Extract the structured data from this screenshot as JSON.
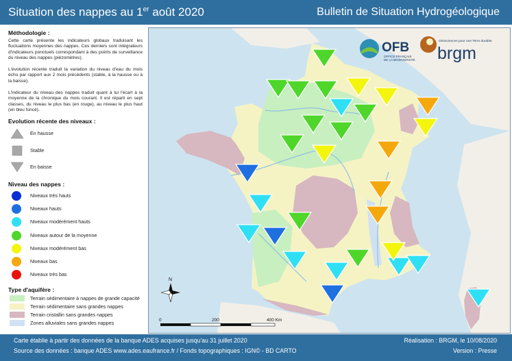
{
  "header": {
    "title_main": "Situation des nappes au 1",
    "title_sup": "er",
    "title_end": " août 2020",
    "right_title": "Bulletin de Situation Hydrogéologique"
  },
  "methodology": {
    "title": "Méthodologie :",
    "paragraphs": [
      "Cette carte présente les indicateurs globaux traduisant les fluctuations moyennes des nappes. Ces derniers sont intégrateurs d'indicateurs ponctuels correspondant à des points de surveillance du niveau des nappes (piézomètres).",
      "L'évolution récente traduit la variation du niveau d'eau du mois échu par rapport aux 2 mois précédents (stable, à la hausse ou à la baisse).",
      "L'indicateur du niveau des nappes traduit quant à lui l'écart à la moyenne de la chronique du mois courant. Il est réparti en sept classes, du niveau le plus bas (en rouge), au niveau le plus haut (en bleu foncé)."
    ]
  },
  "evolution": {
    "title": "Evolution récente des niveaux :",
    "items": [
      {
        "shape": "up",
        "label": "En hausse"
      },
      {
        "shape": "square",
        "label": "Stable"
      },
      {
        "shape": "down",
        "label": "En baisse"
      }
    ]
  },
  "levels": {
    "title": "Niveau des nappes :",
    "items": [
      {
        "color": "#0a2fd6",
        "label": "Niveaux très hauts"
      },
      {
        "color": "#1e6fe0",
        "label": "Niveaux hauts"
      },
      {
        "color": "#2fe0f5",
        "label": "Niveaux modérément hauts"
      },
      {
        "color": "#4fd62a",
        "label": "Niveaux autour de la moyenne"
      },
      {
        "color": "#f3f50c",
        "label": "Niveaux modérément bas"
      },
      {
        "color": "#f5a80c",
        "label": "Niveaux bas"
      },
      {
        "color": "#e8140c",
        "label": "Niveaux très bas"
      }
    ]
  },
  "aquifer": {
    "title": "Type d'aquifère :",
    "items": [
      {
        "color": "#c8efc0",
        "label": "Terrain sédimentaire à nappes de grande capacité"
      },
      {
        "color": "#f5f3c4",
        "label": "Terrain sédimentaire sans grandes nappes"
      },
      {
        "color": "#d7b7c0",
        "label": "Terrain cristallin sans grandes nappes"
      },
      {
        "color": "#cfe1f3",
        "label": "Zones alluviales sans grandes nappes"
      }
    ]
  },
  "logos": {
    "ofb": "OFB",
    "ofb_sub1": "OFFICE FRANÇAIS",
    "ofb_sub2": "DE LA BIODIVERSITÉ",
    "brgm": "brgm",
    "brgm_tagline": "Géosciences pour une Terre durable"
  },
  "map": {
    "scale_labels": [
      "0",
      "200",
      "400 Km"
    ],
    "north_label": "N",
    "colors": {
      "sea": "#cde3f0",
      "neighbors": "#f2efe9",
      "sedimentary_large": "#c8efc0",
      "sedimentary_small": "#f5f3c4",
      "crystalline": "#d7b7c0",
      "alluvial": "#cfe1f3",
      "rivers": "#8ec1e0"
    },
    "markers": [
      {
        "level": "moyenne",
        "color": "#4fd62a"
      },
      {
        "level": "moyenne",
        "color": "#4fd62a"
      },
      {
        "level": "moyenne",
        "color": "#4fd62a"
      },
      {
        "level": "moyenne",
        "color": "#4fd62a"
      },
      {
        "level": "modérément bas",
        "color": "#f3f50c"
      },
      {
        "level": "modérément bas",
        "color": "#f3f50c"
      },
      {
        "level": "bas",
        "color": "#f5a80c"
      },
      {
        "level": "modérément hauts",
        "color": "#2fe0f5"
      },
      {
        "level": "moyenne",
        "color": "#4fd62a"
      },
      {
        "level": "moyenne",
        "color": "#4fd62a"
      },
      {
        "level": "moyenne",
        "color": "#4fd62a"
      },
      {
        "level": "modérément bas",
        "color": "#f3f50c"
      },
      {
        "level": "moyenne",
        "color": "#4fd62a"
      },
      {
        "level": "modérément bas",
        "color": "#f3f50c"
      },
      {
        "level": "bas",
        "color": "#f5a80c"
      },
      {
        "level": "hauts",
        "color": "#1e6fe0"
      },
      {
        "level": "bas",
        "color": "#f5a80c"
      },
      {
        "level": "modérément hauts",
        "color": "#2fe0f5"
      },
      {
        "level": "bas",
        "color": "#f5a80c"
      },
      {
        "level": "moyenne",
        "color": "#4fd62a"
      },
      {
        "level": "modérément hauts",
        "color": "#2fe0f5"
      },
      {
        "level": "hauts",
        "color": "#1e6fe0"
      },
      {
        "level": "modérément hauts",
        "color": "#2fe0f5"
      },
      {
        "level": "modérément hauts",
        "color": "#2fe0f5"
      },
      {
        "level": "moyenne",
        "color": "#4fd62a"
      },
      {
        "level": "modérément bas",
        "color": "#f3f50c"
      },
      {
        "level": "modérément hauts",
        "color": "#2fe0f5"
      },
      {
        "level": "modérément hauts",
        "color": "#2fe0f5"
      },
      {
        "level": "hauts",
        "color": "#1e6fe0"
      },
      {
        "level": "modérément hauts",
        "color": "#2fe0f5"
      }
    ]
  },
  "footer": {
    "line1_left": "Carte établie à partir des données de la banque ADES acquises jusqu'au 31 juillet 2020",
    "line2_left": "Source des données : banque ADES www.ades.eaufrance.fr / Fonds topographiques : IGN© - BD CARTO",
    "line1_right": "Réalisation : BRGM, le 10/08/2020",
    "line2_right": "Version : Presse"
  }
}
